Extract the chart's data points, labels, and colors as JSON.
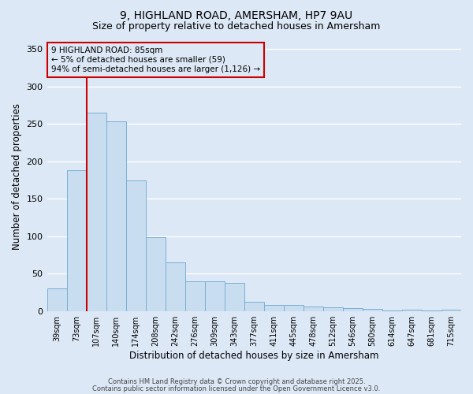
{
  "title1": "9, HIGHLAND ROAD, AMERSHAM, HP7 9AU",
  "title2": "Size of property relative to detached houses in Amersham",
  "xlabel": "Distribution of detached houses by size in Amersham",
  "ylabel": "Number of detached properties",
  "categories": [
    "39sqm",
    "73sqm",
    "107sqm",
    "140sqm",
    "174sqm",
    "208sqm",
    "242sqm",
    "276sqm",
    "309sqm",
    "343sqm",
    "377sqm",
    "411sqm",
    "445sqm",
    "478sqm",
    "512sqm",
    "546sqm",
    "580sqm",
    "614sqm",
    "647sqm",
    "681sqm",
    "715sqm"
  ],
  "values": [
    30,
    188,
    265,
    253,
    174,
    99,
    65,
    40,
    40,
    38,
    12,
    8,
    8,
    6,
    5,
    4,
    3,
    1,
    2,
    1,
    2
  ],
  "bar_color": "#c9ddf0",
  "bar_edge_color": "#7aafd4",
  "plot_bg_color": "#dce8f5",
  "fig_bg_color": "#dce8f5",
  "grid_color": "#ffffff",
  "ylim": [
    0,
    360
  ],
  "red_line_x": 1.5,
  "annotation_text": "9 HIGHLAND ROAD: 85sqm\n← 5% of detached houses are smaller (59)\n94% of semi-detached houses are larger (1,126) →",
  "annotation_box_color": "#cc0000",
  "footer1": "Contains HM Land Registry data © Crown copyright and database right 2025.",
  "footer2": "Contains public sector information licensed under the Open Government Licence v3.0."
}
